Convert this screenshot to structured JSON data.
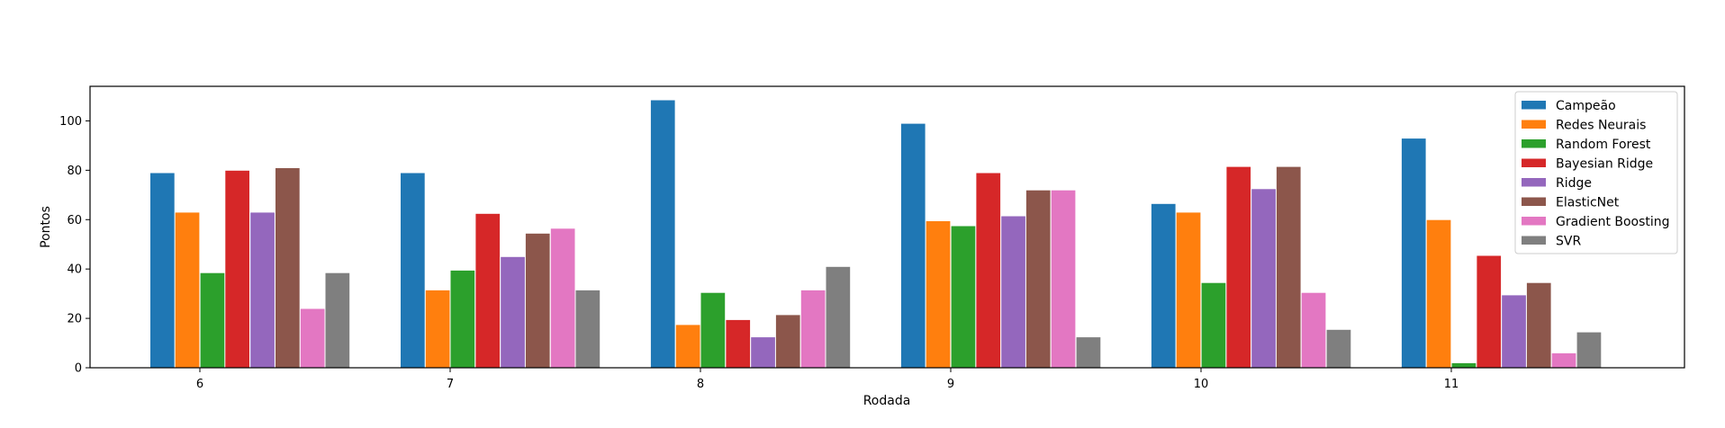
{
  "chart_data": {
    "type": "bar",
    "xlabel": "Rodada",
    "ylabel": "Pontos",
    "categories": [
      "6",
      "7",
      "8",
      "9",
      "10",
      "11"
    ],
    "ylim": [
      0,
      114
    ],
    "yticks": [
      0,
      20,
      40,
      60,
      80,
      100
    ],
    "grid": false,
    "legend_position": "top-right",
    "series": [
      {
        "name": "Campeão",
        "color": "#1f77b4",
        "values": [
          79,
          79,
          108.5,
          99,
          66.5,
          93
        ]
      },
      {
        "name": "Redes Neurais",
        "color": "#ff7f0e",
        "values": [
          63,
          31.5,
          17.5,
          59.5,
          63,
          60
        ]
      },
      {
        "name": "Random Forest",
        "color": "#2ca02c",
        "values": [
          38.5,
          39.5,
          30.5,
          57.5,
          34.5,
          2
        ]
      },
      {
        "name": "Bayesian Ridge",
        "color": "#d62728",
        "values": [
          80,
          62.5,
          19.5,
          79,
          81.5,
          45.5
        ]
      },
      {
        "name": "Ridge",
        "color": "#9467bd",
        "values": [
          63,
          45,
          12.5,
          61.5,
          72.5,
          29.5
        ]
      },
      {
        "name": "ElasticNet",
        "color": "#8c564b",
        "values": [
          81,
          54.5,
          21.5,
          72,
          81.5,
          34.5
        ]
      },
      {
        "name": "Gradient Boosting",
        "color": "#e377c2",
        "values": [
          24,
          56.5,
          31.5,
          72,
          30.5,
          6
        ]
      },
      {
        "name": "SVR",
        "color": "#7f7f7f",
        "values": [
          38.5,
          31.5,
          41,
          12.5,
          15.5,
          14.5
        ]
      }
    ]
  }
}
